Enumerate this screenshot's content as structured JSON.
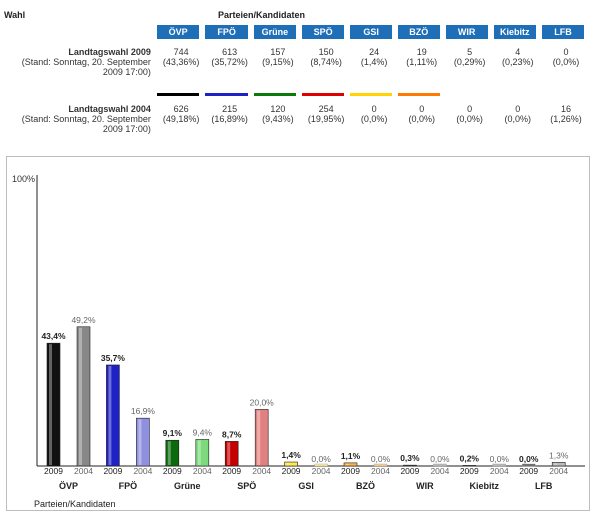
{
  "header": {
    "wahl": "Wahl",
    "parteien": "Parteien/Kandidaten"
  },
  "parties": [
    "ÖVP",
    "FPÖ",
    "Grüne",
    "SPÖ",
    "GSI",
    "BZÖ",
    "WIR",
    "Kiebitz",
    "LFB"
  ],
  "colors": {
    "header_bg": "#1f6fb8",
    "party_lines": [
      "#000000",
      "#1e22c4",
      "#0b7a0b",
      "#e00000",
      "#ffd400",
      "#ff7a00",
      "#ffffff",
      "#ffffff",
      "#ffffff"
    ],
    "bar_2009": [
      "#111111",
      "#1e22c4",
      "#0b6a0b",
      "#c40000",
      "#ffe94a",
      "#ffb347",
      "#666666",
      "#666666",
      "#666666"
    ],
    "bar_2004": [
      "#888888",
      "#9090e0",
      "#7cd97c",
      "#e08080",
      "#ffeea0",
      "#ffd090",
      "#bbbbbb",
      "#bbbbbb",
      "#bbbbbb"
    ]
  },
  "elections": [
    {
      "title": "Landtagswahl 2009",
      "stand": "(Stand: Sonntag, 20. September 2009 17:00)",
      "votes": [
        "744",
        "613",
        "157",
        "150",
        "24",
        "19",
        "5",
        "4",
        "0"
      ],
      "pct": [
        "(43,36%)",
        "(35,72%)",
        "(9,15%)",
        "(8,74%)",
        "(1,4%)",
        "(1,11%)",
        "(0,29%)",
        "(0,23%)",
        "(0,0%)"
      ]
    },
    {
      "title": "Landtagswahl 2004",
      "stand": "(Stand: Sonntag, 20. September 2009 17:00)",
      "votes": [
        "626",
        "215",
        "120",
        "254",
        "0",
        "0",
        "0",
        "0",
        "16"
      ],
      "pct": [
        "(49,18%)",
        "(16,89%)",
        "(9,43%)",
        "(19,95%)",
        "(0,0%)",
        "(0,0%)",
        "(0,0%)",
        "(0,0%)",
        "(1,26%)"
      ]
    }
  ],
  "chart_data": {
    "type": "bar",
    "ymax_label": "100%",
    "xlabel": "Parteien/Kandidaten",
    "categories": [
      "ÖVP",
      "FPÖ",
      "Grüne",
      "SPÖ",
      "GSI",
      "BZÖ",
      "WIR",
      "Kiebitz",
      "LFB"
    ],
    "ylim": [
      0,
      100
    ],
    "series": [
      {
        "name": "2009",
        "values": [
          43.4,
          35.7,
          9.1,
          8.7,
          1.4,
          1.1,
          0.3,
          0.2,
          0.0
        ],
        "labels": [
          "43,4%",
          "35,7%",
          "9,1%",
          "8,7%",
          "1,4%",
          "1,1%",
          "0,3%",
          "0,2%",
          "0,0%"
        ]
      },
      {
        "name": "2004",
        "values": [
          49.2,
          16.9,
          9.4,
          20.0,
          0.0,
          0.0,
          0.0,
          0.0,
          1.3
        ],
        "labels": [
          "49,2%",
          "16,9%",
          "9,4%",
          "20,0%",
          "0,0%",
          "0,0%",
          "0,0%",
          "0,0%",
          "1,3%"
        ]
      }
    ]
  }
}
